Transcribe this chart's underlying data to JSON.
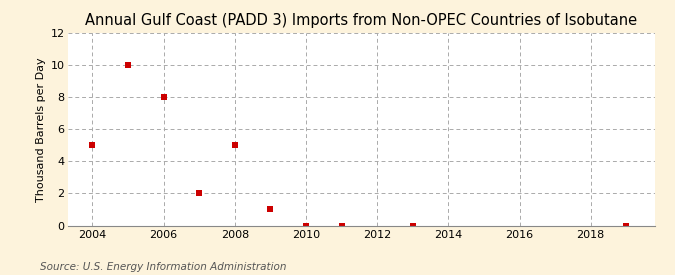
{
  "title": "Annual Gulf Coast (PADD 3) Imports from Non-OPEC Countries of Isobutane",
  "ylabel": "Thousand Barrels per Day",
  "source": "Source: U.S. Energy Information Administration",
  "background_color": "#fdf3dc",
  "plot_background_color": "#ffffff",
  "marker_color": "#cc0000",
  "marker": "s",
  "marker_size": 4,
  "x_data": [
    2004,
    2005,
    2006,
    2007,
    2008,
    2009,
    2010,
    2011,
    2013,
    2019
  ],
  "y_data": [
    5.0,
    10.0,
    8.0,
    2.0,
    5.0,
    1.0,
    0.0,
    0.0,
    0.0,
    0.0
  ],
  "xlim": [
    2003.3,
    2019.8
  ],
  "ylim": [
    0,
    12
  ],
  "yticks": [
    0,
    2,
    4,
    6,
    8,
    10,
    12
  ],
  "xticks": [
    2004,
    2006,
    2008,
    2010,
    2012,
    2014,
    2016,
    2018
  ],
  "grid_color": "#aaaaaa",
  "grid_style": "--",
  "title_fontsize": 10.5,
  "label_fontsize": 8,
  "tick_fontsize": 8,
  "source_fontsize": 7.5
}
